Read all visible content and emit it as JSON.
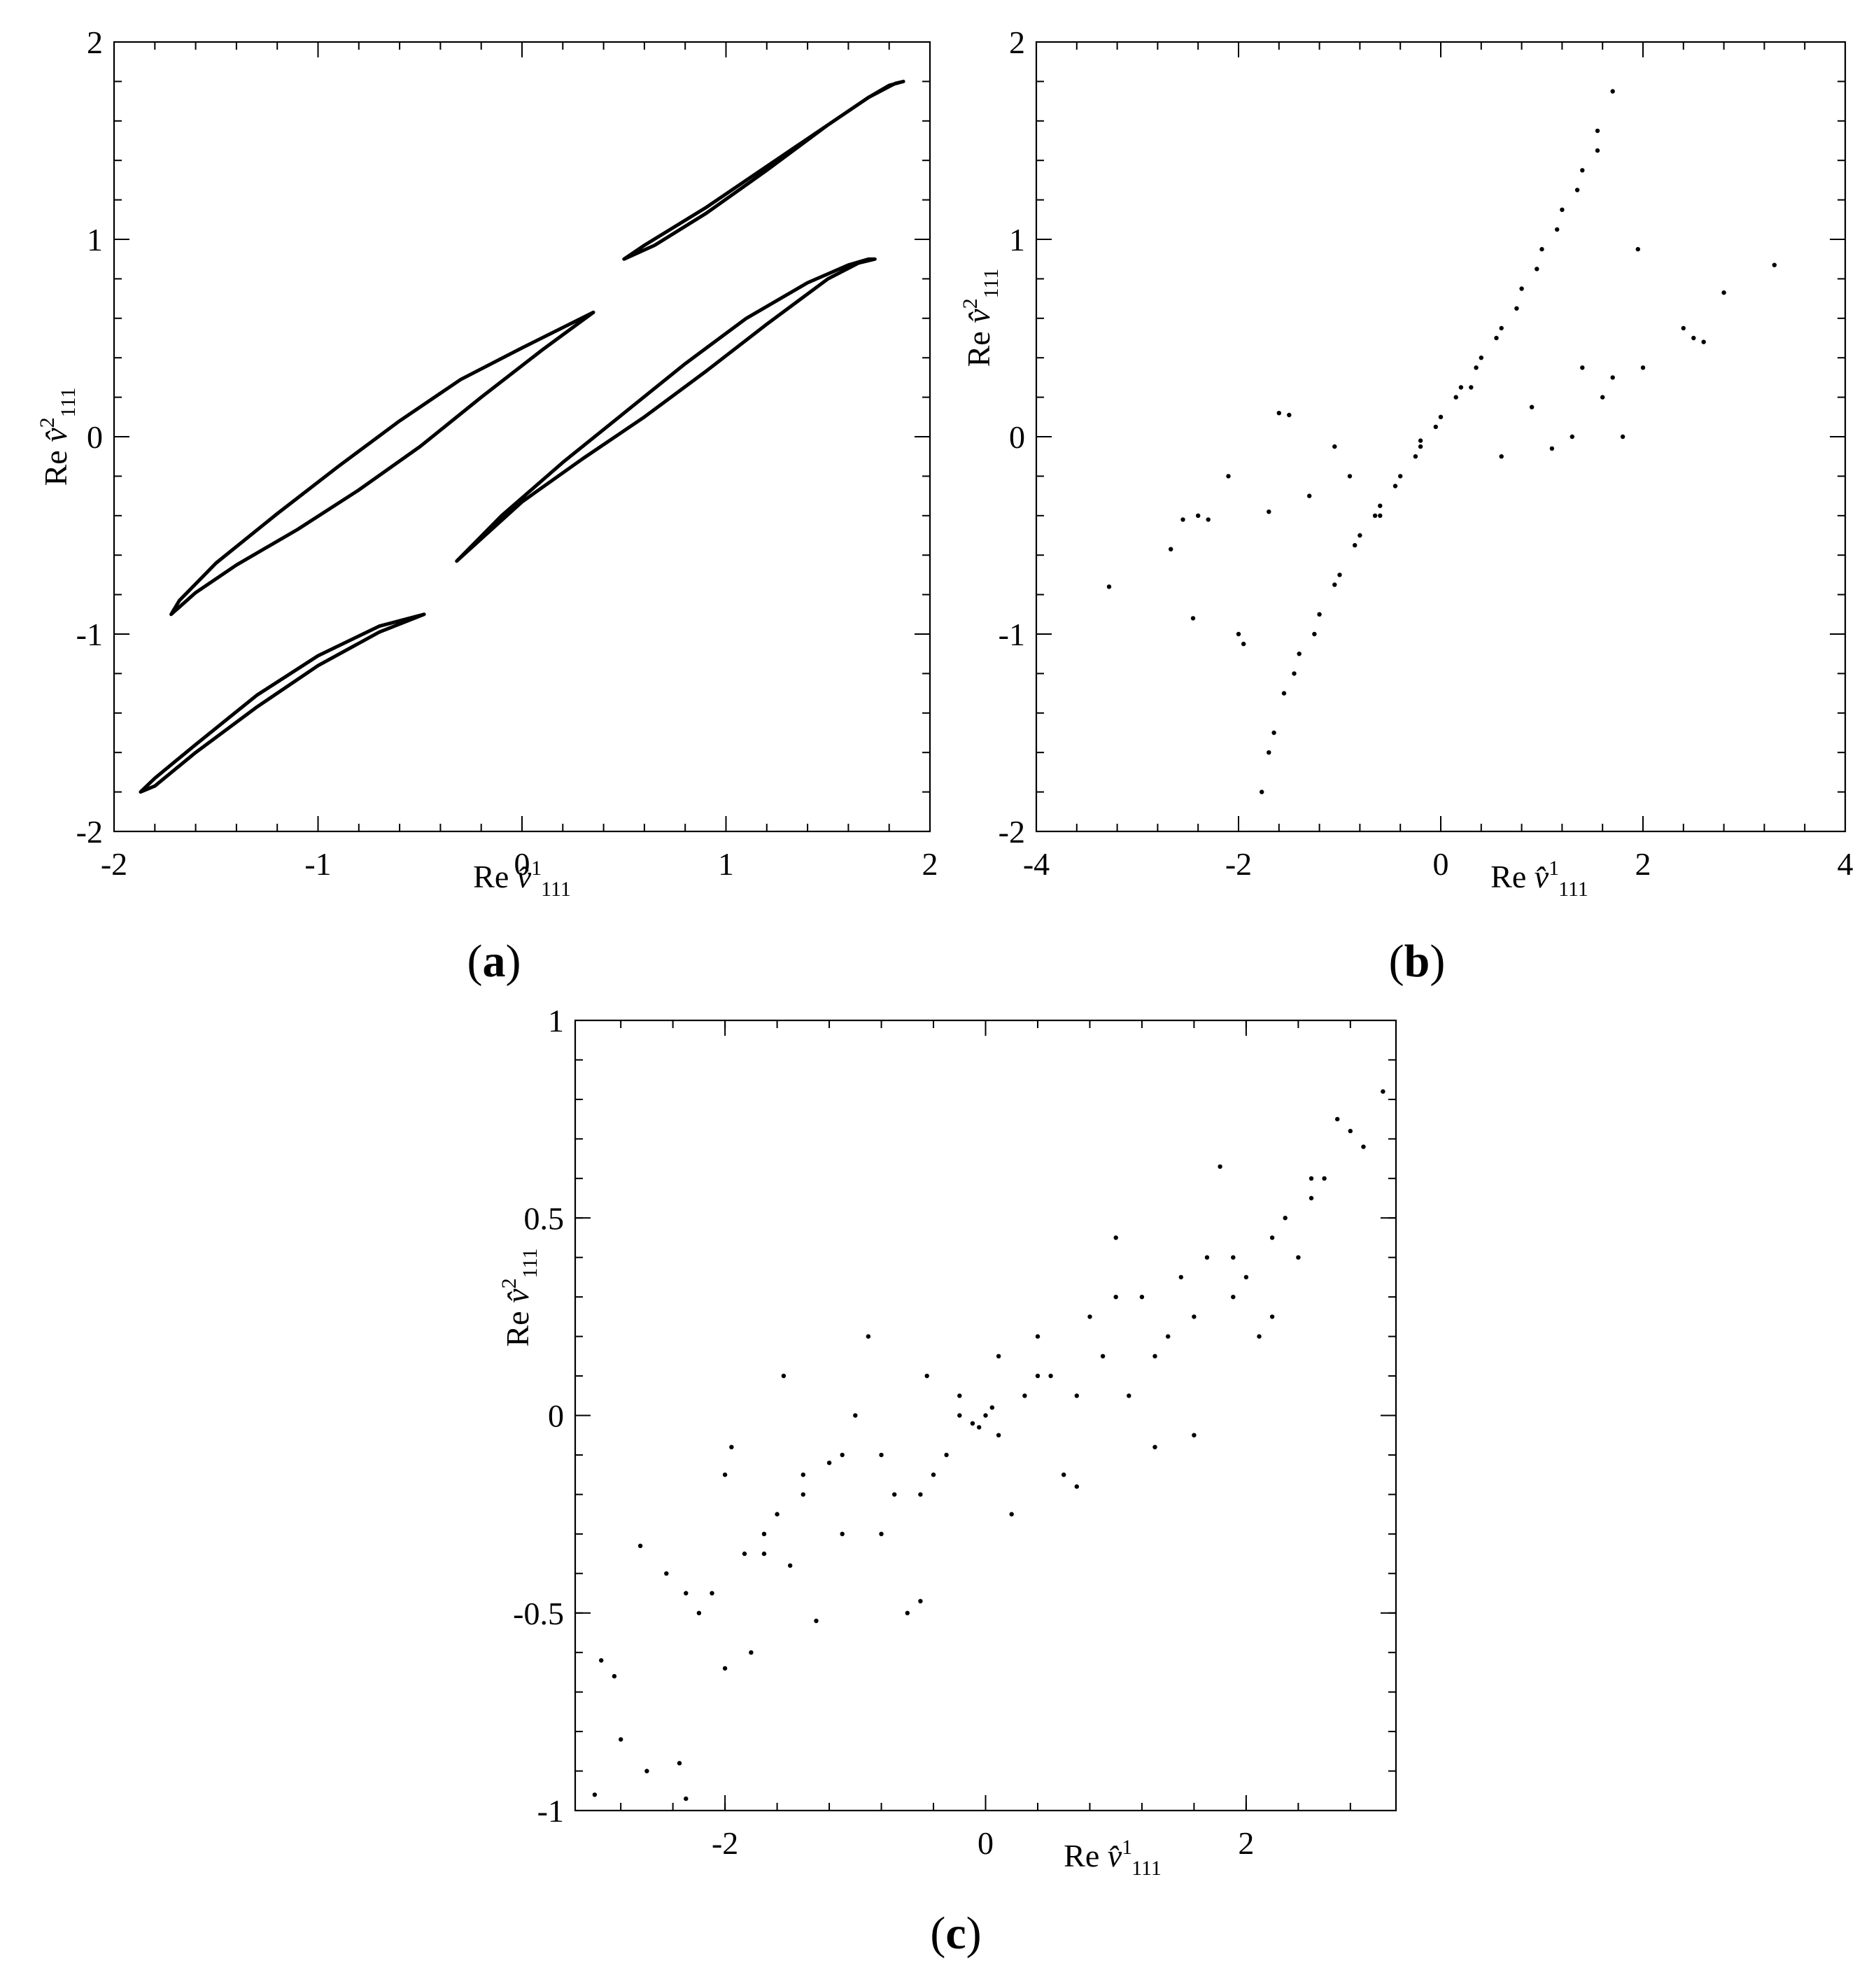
{
  "figure": {
    "panels": [
      {
        "id": "a",
        "label_open": "(",
        "label_letter": "a",
        "label_close": ")"
      },
      {
        "id": "b",
        "label_open": "(",
        "label_letter": "b",
        "label_close": ")"
      },
      {
        "id": "c",
        "label_open": "(",
        "label_letter": "c",
        "label_close": ")"
      }
    ]
  },
  "chart_data": [
    {
      "id": "a",
      "type": "line",
      "xlabel": "Re v̂¹₁₁₁",
      "ylabel": "Re v̂²₁₁₁",
      "xlim": [
        -2,
        2
      ],
      "ylim": [
        -2,
        2
      ],
      "xticks": [
        -2,
        -1,
        0,
        1,
        2
      ],
      "yticks": [
        -2,
        -1,
        0,
        1,
        2
      ],
      "xtick_labels": [
        "-2",
        "-1",
        "0",
        "1",
        "2"
      ],
      "ytick_labels": [
        "-2",
        "-1",
        "0",
        "1",
        "2"
      ],
      "grid": false,
      "series": [
        {
          "x": [
            1.87,
            1.8,
            1.7,
            1.5,
            1.2,
            0.9,
            0.65,
            0.5,
            0.6,
            0.9,
            1.2,
            1.5,
            1.7,
            1.83,
            1.87
          ],
          "y": [
            1.8,
            1.78,
            1.72,
            1.58,
            1.35,
            1.13,
            0.97,
            0.9,
            0.97,
            1.16,
            1.37,
            1.58,
            1.72,
            1.79,
            1.8
          ]
        },
        {
          "x": [
            1.73,
            1.65,
            1.5,
            1.2,
            0.9,
            0.6,
            0.3,
            0.0,
            -0.32,
            -0.1,
            0.2,
            0.5,
            0.8,
            1.1,
            1.4,
            1.6,
            1.7,
            1.73
          ],
          "y": [
            0.9,
            0.88,
            0.8,
            0.57,
            0.33,
            0.1,
            -0.11,
            -0.33,
            -0.63,
            -0.4,
            -0.13,
            0.12,
            0.37,
            0.6,
            0.78,
            0.87,
            0.9,
            0.9
          ]
        },
        {
          "x": [
            0.35,
            0.1,
            -0.2,
            -0.5,
            -0.8,
            -1.1,
            -1.4,
            -1.6,
            -1.72,
            -1.68,
            -1.5,
            -1.2,
            -0.9,
            -0.6,
            -0.3,
            0.0,
            0.35
          ],
          "y": [
            0.63,
            0.44,
            0.2,
            -0.05,
            -0.27,
            -0.47,
            -0.65,
            -0.79,
            -0.9,
            -0.83,
            -0.64,
            -0.39,
            -0.15,
            0.08,
            0.29,
            0.45,
            0.63
          ]
        },
        {
          "x": [
            -0.48,
            -0.7,
            -1.0,
            -1.3,
            -1.6,
            -1.8,
            -1.87,
            -1.8,
            -1.6,
            -1.3,
            -1.0,
            -0.7,
            -0.48
          ],
          "y": [
            -0.9,
            -0.99,
            -1.16,
            -1.37,
            -1.6,
            -1.77,
            -1.8,
            -1.73,
            -1.56,
            -1.31,
            -1.11,
            -0.96,
            -0.9
          ]
        }
      ]
    },
    {
      "id": "b",
      "type": "scatter",
      "xlabel": "Re v̂¹₁₁₁",
      "ylabel": "Re v̂²₁₁₁",
      "xlim": [
        -4,
        4
      ],
      "ylim": [
        -2,
        2
      ],
      "xticks": [
        -4,
        -2,
        0,
        2,
        4
      ],
      "yticks": [
        -2,
        -1,
        0,
        1,
        2
      ],
      "xtick_labels": [
        "-4",
        "-2",
        "0",
        "2",
        "4"
      ],
      "ytick_labels": [
        "-2",
        "-1",
        "0",
        "1",
        "2"
      ],
      "grid": false,
      "points_x": [
        -3.28,
        -2.67,
        -2.55,
        -2.45,
        -2.4,
        -2.3,
        -2.1,
        -2.0,
        -1.95,
        -1.7,
        -1.6,
        -1.5,
        -1.3,
        -1.05,
        -0.9,
        -0.6,
        -0.2,
        0.3,
        0.6,
        0.9,
        1.1,
        1.3,
        1.4,
        1.6,
        1.7,
        1.8,
        1.95,
        2.0,
        2.4,
        2.5,
        2.6,
        2.8,
        3.3,
        -1.77,
        -1.7,
        -1.55,
        -1.4,
        -1.2,
        -1.0,
        -0.8,
        -0.6,
        -0.4,
        -0.2,
        0.0,
        0.2,
        0.4,
        0.6,
        0.8,
        1.0,
        1.2,
        1.4,
        1.55,
        1.7,
        -1.65,
        -1.45,
        -1.25,
        -1.05,
        -0.85,
        -0.65,
        -0.45,
        -0.25,
        -0.05,
        0.15,
        0.35,
        0.55,
        0.75,
        0.95,
        1.15,
        1.35,
        1.55
      ],
      "points_y": [
        -0.76,
        -0.57,
        -0.42,
        -0.92,
        -0.4,
        -0.42,
        -0.2,
        -1.0,
        -1.05,
        -0.38,
        0.12,
        0.11,
        -0.3,
        -0.05,
        -0.2,
        -0.4,
        -0.02,
        0.25,
        -0.1,
        0.15,
        -0.06,
        0.0,
        0.35,
        0.2,
        0.3,
        0.0,
        0.95,
        0.35,
        0.55,
        0.5,
        0.48,
        0.73,
        0.87,
        -1.8,
        -1.6,
        -1.3,
        -1.1,
        -0.9,
        -0.7,
        -0.5,
        -0.35,
        -0.2,
        -0.05,
        0.1,
        0.25,
        0.4,
        0.55,
        0.75,
        0.95,
        1.15,
        1.35,
        1.55,
        1.75,
        -1.5,
        -1.2,
        -1.0,
        -0.75,
        -0.55,
        -0.4,
        -0.25,
        -0.1,
        0.05,
        0.2,
        0.35,
        0.5,
        0.65,
        0.85,
        1.05,
        1.25,
        1.45
      ]
    },
    {
      "id": "c",
      "type": "scatter",
      "xlabel": "Re v̂¹₁₁₁",
      "ylabel": "Re v̂²₁₁₁",
      "xlim": [
        -3.15,
        3.15
      ],
      "ylim": [
        -1,
        1
      ],
      "xticks": [
        -2,
        0,
        2
      ],
      "yticks": [
        -1,
        -0.5,
        0,
        0.5,
        1
      ],
      "xtick_labels": [
        "-2",
        "0",
        "2"
      ],
      "ytick_labels": [
        "-1",
        "-0.5",
        "0",
        "0.5",
        "1"
      ],
      "grid": false,
      "points_x": [
        -3.0,
        -2.95,
        -2.85,
        -2.8,
        -2.6,
        -2.65,
        -2.45,
        -2.35,
        -2.3,
        -2.2,
        -2.1,
        -2.0,
        -1.95,
        -1.85,
        -1.8,
        -1.7,
        -1.6,
        -1.55,
        -1.5,
        -1.4,
        -1.3,
        -1.2,
        -1.1,
        -1.0,
        -0.9,
        -0.8,
        -0.7,
        -0.6,
        -0.5,
        -0.45,
        -0.4,
        -0.3,
        -0.2,
        -0.1,
        -0.05,
        0.0,
        0.05,
        0.1,
        0.2,
        0.3,
        0.4,
        0.5,
        0.6,
        0.7,
        0.8,
        0.9,
        1.0,
        1.1,
        1.2,
        1.3,
        1.4,
        1.5,
        1.6,
        1.7,
        1.8,
        1.9,
        2.0,
        2.1,
        2.2,
        2.3,
        2.4,
        2.5,
        2.6,
        2.7,
        2.8,
        2.9,
        3.05,
        -2.3,
        -2.0,
        -1.7,
        -1.4,
        -1.1,
        -0.8,
        -0.5,
        -0.2,
        0.1,
        0.4,
        0.7,
        1.0,
        1.3,
        1.6,
        1.9,
        2.2,
        2.5
      ],
      "points_y": [
        -0.96,
        -0.62,
        -0.66,
        -0.82,
        -0.9,
        -0.33,
        -0.4,
        -0.88,
        -0.97,
        -0.5,
        -0.45,
        -0.64,
        -0.08,
        -0.35,
        -0.6,
        -0.3,
        -0.25,
        0.1,
        -0.38,
        -0.15,
        -0.52,
        -0.12,
        -0.1,
        0.0,
        0.2,
        -0.3,
        -0.2,
        -0.5,
        -0.47,
        0.1,
        -0.15,
        -0.1,
        0.05,
        -0.02,
        -0.03,
        0.0,
        0.02,
        0.15,
        -0.25,
        0.05,
        0.2,
        0.1,
        -0.15,
        -0.18,
        0.25,
        0.15,
        0.45,
        0.05,
        0.3,
        -0.08,
        0.2,
        0.35,
        -0.05,
        0.4,
        0.63,
        0.3,
        0.35,
        0.2,
        0.25,
        0.5,
        0.4,
        0.55,
        0.6,
        0.75,
        0.72,
        0.68,
        0.82,
        -0.45,
        -0.15,
        -0.35,
        -0.2,
        -0.3,
        -0.1,
        -0.2,
        0.0,
        -0.05,
        0.1,
        0.05,
        0.3,
        0.15,
        0.25,
        0.4,
        0.45,
        0.6
      ]
    }
  ]
}
